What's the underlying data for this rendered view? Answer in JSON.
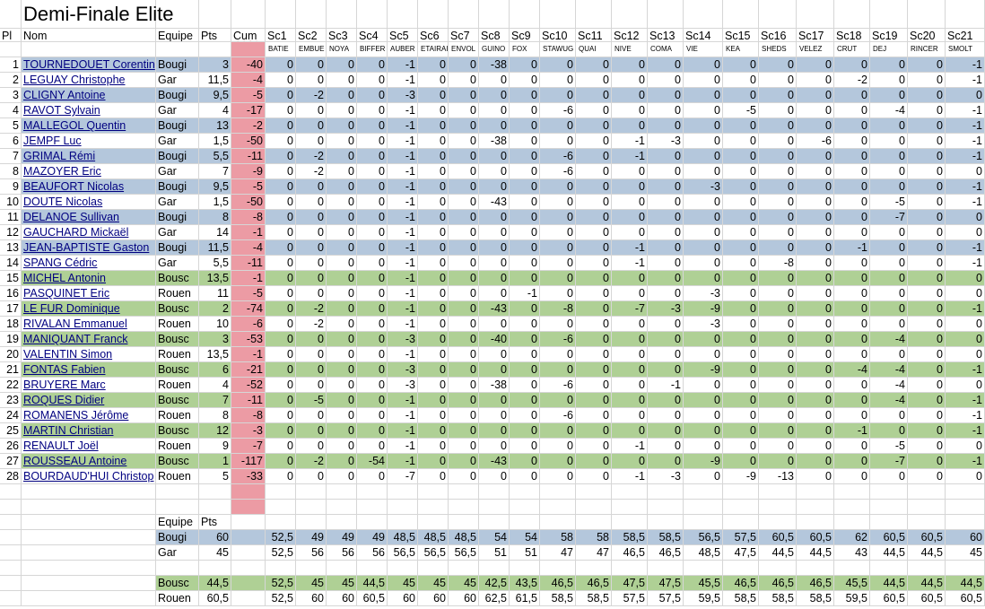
{
  "title": "Demi-Finale Elite",
  "headers": {
    "pl": "Pl",
    "nom": "Nom",
    "equipe": "Equipe",
    "pts": "Pts",
    "cum": "Cum"
  },
  "sections": [
    "Sc1",
    "Sc2",
    "Sc3",
    "Sc4",
    "Sc5",
    "Sc6",
    "Sc7",
    "Sc8",
    "Sc9",
    "Sc10",
    "Sc11",
    "Sc12",
    "Sc13",
    "Sc14",
    "Sc15",
    "Sc16",
    "Sc17",
    "Sc18",
    "Sc19",
    "Sc20",
    "Sc21"
  ],
  "section_names": [
    "BATIE",
    "EMBUE",
    "NOYA",
    "BIFFER",
    "AUBER",
    "ETAIRAI",
    "ENVOL",
    "GUINO",
    "FOX",
    "STAWUG",
    "QUAI",
    "NIVE",
    "COMA",
    "VIE",
    "KEA",
    "SHEDS",
    "VELEZ",
    "CRUT",
    "DEJ",
    "RINCER",
    "SMOLT"
  ],
  "colors": {
    "blue": "#b4c7dc",
    "green": "#afd095",
    "pink": "#ec9ba4",
    "link": "#000080",
    "grid": "#d6d6d6"
  },
  "rows": [
    {
      "pl": "1",
      "nom": "TOURNEDOUET Corentin",
      "equipe": "Bougi",
      "pts": "3",
      "cum": "-40",
      "sc": [
        "0",
        "0",
        "0",
        "0",
        "-1",
        "0",
        "0",
        "-38",
        "0",
        "0",
        "0",
        "0",
        "0",
        "0",
        "0",
        "0",
        "0",
        "0",
        "0",
        "0",
        "-1"
      ]
    },
    {
      "pl": "2",
      "nom": "LEGUAY Christophe",
      "equipe": "Gar",
      "pts": "11,5",
      "cum": "-4",
      "sc": [
        "0",
        "0",
        "0",
        "0",
        "-1",
        "0",
        "0",
        "0",
        "0",
        "0",
        "0",
        "0",
        "0",
        "0",
        "0",
        "0",
        "0",
        "-2",
        "0",
        "0",
        "-1"
      ]
    },
    {
      "pl": "3",
      "nom": "CLIGNY Antoine",
      "equipe": "Bougi",
      "pts": "9,5",
      "cum": "-5",
      "sc": [
        "0",
        "-2",
        "0",
        "0",
        "-3",
        "0",
        "0",
        "0",
        "0",
        "0",
        "0",
        "0",
        "0",
        "0",
        "0",
        "0",
        "0",
        "0",
        "0",
        "0",
        "0"
      ]
    },
    {
      "pl": "4",
      "nom": "RAVOT Sylvain",
      "equipe": "Gar",
      "pts": "4",
      "cum": "-17",
      "sc": [
        "0",
        "0",
        "0",
        "0",
        "-1",
        "0",
        "0",
        "0",
        "0",
        "-6",
        "0",
        "0",
        "0",
        "0",
        "-5",
        "0",
        "0",
        "0",
        "-4",
        "0",
        "-1"
      ]
    },
    {
      "pl": "5",
      "nom": "MALLEGOL Quentin",
      "equipe": "Bougi",
      "pts": "13",
      "cum": "-2",
      "sc": [
        "0",
        "0",
        "0",
        "0",
        "-1",
        "0",
        "0",
        "0",
        "0",
        "0",
        "0",
        "0",
        "0",
        "0",
        "0",
        "0",
        "0",
        "0",
        "0",
        "0",
        "-1"
      ]
    },
    {
      "pl": "6",
      "nom": "JEMPF Luc",
      "equipe": "Gar",
      "pts": "1,5",
      "cum": "-50",
      "sc": [
        "0",
        "0",
        "0",
        "0",
        "-1",
        "0",
        "0",
        "-38",
        "0",
        "0",
        "0",
        "-1",
        "-3",
        "0",
        "0",
        "0",
        "-6",
        "0",
        "0",
        "0",
        "-1"
      ]
    },
    {
      "pl": "7",
      "nom": "GRIMAL Rémi",
      "equipe": "Bougi",
      "pts": "5,5",
      "cum": "-11",
      "sc": [
        "0",
        "-2",
        "0",
        "0",
        "-1",
        "0",
        "0",
        "0",
        "0",
        "-6",
        "0",
        "-1",
        "0",
        "0",
        "0",
        "0",
        "0",
        "0",
        "0",
        "0",
        "-1"
      ]
    },
    {
      "pl": "8",
      "nom": "MAZOYER Eric",
      "equipe": "Gar",
      "pts": "7",
      "cum": "-9",
      "sc": [
        "0",
        "-2",
        "0",
        "0",
        "-1",
        "0",
        "0",
        "0",
        "0",
        "-6",
        "0",
        "0",
        "0",
        "0",
        "0",
        "0",
        "0",
        "0",
        "0",
        "0",
        "0"
      ]
    },
    {
      "pl": "9",
      "nom": "BEAUFORT Nicolas",
      "equipe": "Bougi",
      "pts": "9,5",
      "cum": "-5",
      "sc": [
        "0",
        "0",
        "0",
        "0",
        "-1",
        "0",
        "0",
        "0",
        "0",
        "0",
        "0",
        "0",
        "0",
        "-3",
        "0",
        "0",
        "0",
        "0",
        "0",
        "0",
        "-1"
      ]
    },
    {
      "pl": "10",
      "nom": "DOUTE Nicolas",
      "equipe": "Gar",
      "pts": "1,5",
      "cum": "-50",
      "sc": [
        "0",
        "0",
        "0",
        "0",
        "-1",
        "0",
        "0",
        "-43",
        "0",
        "0",
        "0",
        "0",
        "0",
        "0",
        "0",
        "0",
        "0",
        "0",
        "-5",
        "0",
        "-1"
      ]
    },
    {
      "pl": "11",
      "nom": "DELANOE Sullivan",
      "equipe": "Bougi",
      "pts": "8",
      "cum": "-8",
      "sc": [
        "0",
        "0",
        "0",
        "0",
        "-1",
        "0",
        "0",
        "0",
        "0",
        "0",
        "0",
        "0",
        "0",
        "0",
        "0",
        "0",
        "0",
        "0",
        "-7",
        "0",
        "0"
      ]
    },
    {
      "pl": "12",
      "nom": "GAUCHARD Mickaël",
      "equipe": "Gar",
      "pts": "14",
      "cum": "-1",
      "sc": [
        "0",
        "0",
        "0",
        "0",
        "-1",
        "0",
        "0",
        "0",
        "0",
        "0",
        "0",
        "0",
        "0",
        "0",
        "0",
        "0",
        "0",
        "0",
        "0",
        "0",
        "0"
      ]
    },
    {
      "pl": "13",
      "nom": "JEAN-BAPTISTE Gaston",
      "equipe": "Bougi",
      "pts": "11,5",
      "cum": "-4",
      "sc": [
        "0",
        "0",
        "0",
        "0",
        "-1",
        "0",
        "0",
        "0",
        "0",
        "0",
        "0",
        "-1",
        "0",
        "0",
        "0",
        "0",
        "0",
        "-1",
        "0",
        "0",
        "-1"
      ]
    },
    {
      "pl": "14",
      "nom": "SPANG Cédric",
      "equipe": "Gar",
      "pts": "5,5",
      "cum": "-11",
      "sc": [
        "0",
        "0",
        "0",
        "0",
        "-1",
        "0",
        "0",
        "0",
        "0",
        "0",
        "0",
        "-1",
        "0",
        "0",
        "0",
        "-8",
        "0",
        "0",
        "0",
        "0",
        "-1"
      ]
    },
    {
      "pl": "15",
      "nom": "MICHEL Antonin",
      "equipe": "Bousc",
      "pts": "13,5",
      "cum": "-1",
      "sc": [
        "0",
        "0",
        "0",
        "0",
        "-1",
        "0",
        "0",
        "0",
        "0",
        "0",
        "0",
        "0",
        "0",
        "0",
        "0",
        "0",
        "0",
        "0",
        "0",
        "0",
        "0"
      ]
    },
    {
      "pl": "16",
      "nom": "PASQUINET Eric",
      "equipe": "Rouen",
      "pts": "11",
      "cum": "-5",
      "sc": [
        "0",
        "0",
        "0",
        "0",
        "-1",
        "0",
        "0",
        "0",
        "-1",
        "0",
        "0",
        "0",
        "0",
        "-3",
        "0",
        "0",
        "0",
        "0",
        "0",
        "0",
        "0"
      ]
    },
    {
      "pl": "17",
      "nom": "LE FUR Dominique",
      "equipe": "Bousc",
      "pts": "2",
      "cum": "-74",
      "sc": [
        "0",
        "-2",
        "0",
        "0",
        "-1",
        "0",
        "0",
        "-43",
        "0",
        "-8",
        "0",
        "-7",
        "-3",
        "-9",
        "0",
        "0",
        "0",
        "0",
        "0",
        "0",
        "-1"
      ]
    },
    {
      "pl": "18",
      "nom": "RIVALAN Emmanuel",
      "equipe": "Rouen",
      "pts": "10",
      "cum": "-6",
      "sc": [
        "0",
        "-2",
        "0",
        "0",
        "-1",
        "0",
        "0",
        "0",
        "0",
        "0",
        "0",
        "0",
        "0",
        "-3",
        "0",
        "0",
        "0",
        "0",
        "0",
        "0",
        "0"
      ]
    },
    {
      "pl": "19",
      "nom": "MANIQUANT Franck",
      "equipe": "Bousc",
      "pts": "3",
      "cum": "-53",
      "sc": [
        "0",
        "0",
        "0",
        "0",
        "-3",
        "0",
        "0",
        "-40",
        "0",
        "-6",
        "0",
        "0",
        "0",
        "0",
        "0",
        "0",
        "0",
        "0",
        "-4",
        "0",
        "0"
      ]
    },
    {
      "pl": "20",
      "nom": "VALENTIN Simon",
      "equipe": "Rouen",
      "pts": "13,5",
      "cum": "-1",
      "sc": [
        "0",
        "0",
        "0",
        "0",
        "-1",
        "0",
        "0",
        "0",
        "0",
        "0",
        "0",
        "0",
        "0",
        "0",
        "0",
        "0",
        "0",
        "0",
        "0",
        "0",
        "0"
      ]
    },
    {
      "pl": "21",
      "nom": "FONTAS Fabien",
      "equipe": "Bousc",
      "pts": "6",
      "cum": "-21",
      "sc": [
        "0",
        "0",
        "0",
        "0",
        "-3",
        "0",
        "0",
        "0",
        "0",
        "0",
        "0",
        "0",
        "0",
        "-9",
        "0",
        "0",
        "0",
        "-4",
        "-4",
        "0",
        "-1"
      ]
    },
    {
      "pl": "22",
      "nom": "BRUYERE Marc",
      "equipe": "Rouen",
      "pts": "4",
      "cum": "-52",
      "sc": [
        "0",
        "0",
        "0",
        "0",
        "-3",
        "0",
        "0",
        "-38",
        "0",
        "-6",
        "0",
        "0",
        "-1",
        "0",
        "0",
        "0",
        "0",
        "0",
        "-4",
        "0",
        "0"
      ]
    },
    {
      "pl": "23",
      "nom": "ROQUES Didier",
      "equipe": "Bousc",
      "pts": "7",
      "cum": "-11",
      "sc": [
        "0",
        "-5",
        "0",
        "0",
        "-1",
        "0",
        "0",
        "0",
        "0",
        "0",
        "0",
        "0",
        "0",
        "0",
        "0",
        "0",
        "0",
        "0",
        "-4",
        "0",
        "-1"
      ]
    },
    {
      "pl": "24",
      "nom": "ROMANENS Jérôme",
      "equipe": "Rouen",
      "pts": "8",
      "cum": "-8",
      "sc": [
        "0",
        "0",
        "0",
        "0",
        "-1",
        "0",
        "0",
        "0",
        "0",
        "-6",
        "0",
        "0",
        "0",
        "0",
        "0",
        "0",
        "0",
        "0",
        "0",
        "0",
        "-1"
      ]
    },
    {
      "pl": "25",
      "nom": "MARTIN Christian",
      "equipe": "Bousc",
      "pts": "12",
      "cum": "-3",
      "sc": [
        "0",
        "0",
        "0",
        "0",
        "-1",
        "0",
        "0",
        "0",
        "0",
        "0",
        "0",
        "0",
        "0",
        "0",
        "0",
        "0",
        "0",
        "-1",
        "0",
        "0",
        "-1"
      ]
    },
    {
      "pl": "26",
      "nom": "RENAULT Joël",
      "equipe": "Rouen",
      "pts": "9",
      "cum": "-7",
      "sc": [
        "0",
        "0",
        "0",
        "0",
        "-1",
        "0",
        "0",
        "0",
        "0",
        "0",
        "0",
        "-1",
        "0",
        "0",
        "0",
        "0",
        "0",
        "0",
        "-5",
        "0",
        "0"
      ]
    },
    {
      "pl": "27",
      "nom": "ROUSSEAU Antoine",
      "equipe": "Bousc",
      "pts": "1",
      "cum": "-117",
      "sc": [
        "0",
        "-2",
        "0",
        "-54",
        "-1",
        "0",
        "0",
        "-43",
        "0",
        "0",
        "0",
        "0",
        "0",
        "-9",
        "0",
        "0",
        "0",
        "0",
        "-7",
        "0",
        "-1"
      ]
    },
    {
      "pl": "28",
      "nom": "BOURDAUD'HUI Christop",
      "equipe": "Rouen",
      "pts": "5",
      "cum": "-33",
      "sc": [
        "0",
        "0",
        "0",
        "0",
        "-7",
        "0",
        "0",
        "0",
        "0",
        "0",
        "0",
        "-1",
        "-3",
        "0",
        "-9",
        "-13",
        "0",
        "0",
        "0",
        "0",
        "0"
      ]
    }
  ],
  "summary_headers": {
    "equipe": "Equipe",
    "pts": "Pts"
  },
  "summary": [
    {
      "team": "Bougi",
      "pts": "60",
      "sc": [
        "52,5",
        "49",
        "49",
        "49",
        "48,5",
        "48,5",
        "48,5",
        "54",
        "54",
        "58",
        "58",
        "58,5",
        "58,5",
        "56,5",
        "57,5",
        "60,5",
        "60,5",
        "62",
        "60,5",
        "60,5",
        "60"
      ]
    },
    {
      "team": "Gar",
      "pts": "45",
      "sc": [
        "52,5",
        "56",
        "56",
        "56",
        "56,5",
        "56,5",
        "56,5",
        "51",
        "51",
        "47",
        "47",
        "46,5",
        "46,5",
        "48,5",
        "47,5",
        "44,5",
        "44,5",
        "43",
        "44,5",
        "44,5",
        "45"
      ]
    },
    {
      "team": "Bousc",
      "pts": "44,5",
      "sc": [
        "52,5",
        "45",
        "45",
        "44,5",
        "45",
        "45",
        "45",
        "42,5",
        "43,5",
        "46,5",
        "46,5",
        "47,5",
        "47,5",
        "45,5",
        "46,5",
        "46,5",
        "46,5",
        "45,5",
        "44,5",
        "44,5",
        "44,5"
      ]
    },
    {
      "team": "Rouen",
      "pts": "60,5",
      "sc": [
        "52,5",
        "60",
        "60",
        "60,5",
        "60",
        "60",
        "60",
        "62,5",
        "61,5",
        "58,5",
        "58,5",
        "57,5",
        "57,5",
        "59,5",
        "58,5",
        "58,5",
        "58,5",
        "59,5",
        "60,5",
        "60,5",
        "60,5"
      ]
    }
  ]
}
